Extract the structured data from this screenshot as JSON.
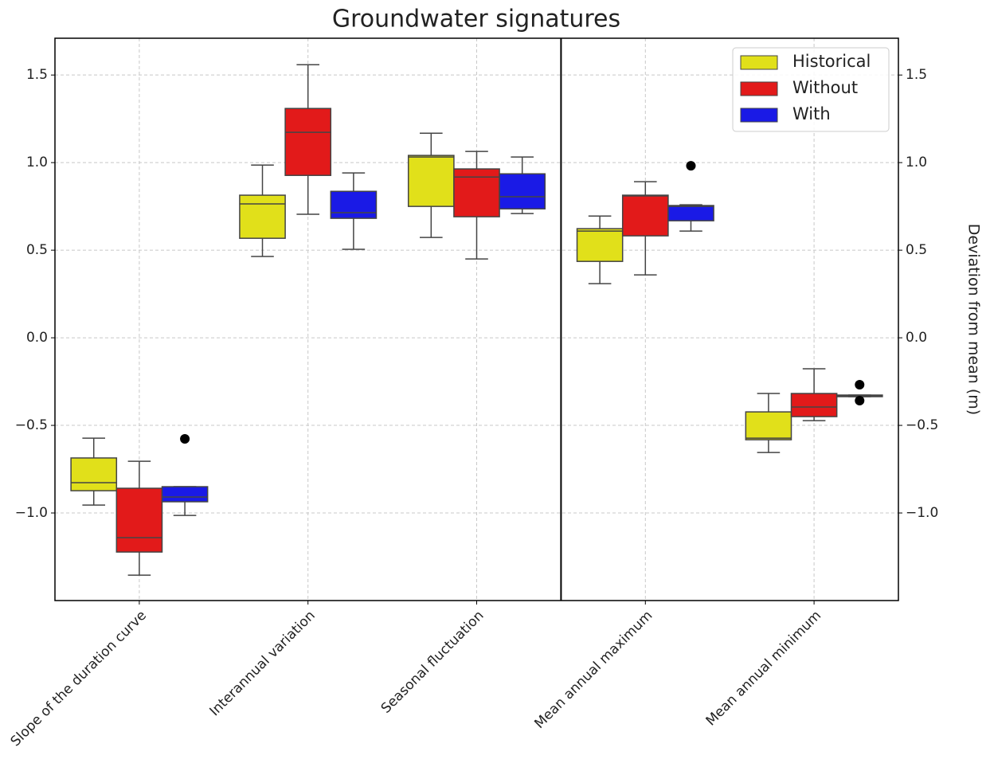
{
  "chart_data": {
    "type": "boxplot",
    "title": "Groundwater signatures",
    "y_label": "Deviation from mean (m)",
    "categories": [
      "Slope of the duration curve",
      "Interannual variation",
      "Seasonal fluctuation",
      "Mean annual maximum",
      "Mean annual minimum"
    ],
    "ylim": [
      -1.5,
      1.71
    ],
    "yticks": [
      {
        "value": -1.0,
        "label": "−1.0"
      },
      {
        "value": -0.5,
        "label": "−0.5"
      },
      {
        "value": 0,
        "label": "0.0"
      },
      0.5,
      {
        "value": 1.0,
        "label": "1.0"
      },
      1.5
    ],
    "grid": true,
    "legend": "upper right",
    "series": [
      {
        "name": "Historical",
        "color": "#e1e01a",
        "whislo": [
          -0.955,
          0.464,
          0.573,
          0.309,
          -0.655
        ],
        "q1": [
          -0.873,
          0.568,
          0.75,
          0.436,
          -0.582
        ],
        "med": [
          -0.827,
          0.764,
          1.032,
          0.609,
          -0.573
        ],
        "q3": [
          -0.686,
          0.814,
          1.041,
          0.623,
          -0.423
        ],
        "whishi": [
          -0.573,
          0.986,
          1.168,
          0.695,
          -0.318
        ],
        "outliers": [
          [],
          [],
          [],
          [],
          []
        ]
      },
      {
        "name": "Without",
        "color": "#e21a1a",
        "whislo": [
          -1.355,
          0.705,
          0.45,
          0.359,
          -0.473
        ],
        "q1": [
          -1.223,
          0.927,
          0.691,
          0.582,
          -0.45
        ],
        "med": [
          -1.141,
          1.173,
          0.918,
          0.81,
          -0.395
        ],
        "q3": [
          -0.859,
          1.309,
          0.964,
          0.814,
          -0.318
        ],
        "whishi": [
          -0.705,
          1.559,
          1.064,
          0.891,
          -0.177
        ],
        "outliers": [
          [],
          [],
          [],
          [],
          []
        ]
      },
      {
        "name": "With",
        "color": "#1a1ae6",
        "whislo": [
          -1.014,
          0.505,
          0.709,
          0.609,
          -0.336
        ],
        "q1": [
          -0.936,
          0.682,
          0.736,
          0.668,
          -0.336
        ],
        "med": [
          -0.909,
          0.714,
          0.805,
          0.75,
          -0.332
        ],
        "q3": [
          -0.85,
          0.836,
          0.936,
          0.755,
          -0.327
        ],
        "whishi": [
          -0.85,
          0.941,
          1.032,
          0.759,
          -0.327
        ],
        "outliers": [
          [
            -0.577
          ],
          [],
          [],
          [
            0.982
          ],
          [
            -0.268,
            -0.359
          ]
        ]
      }
    ]
  }
}
